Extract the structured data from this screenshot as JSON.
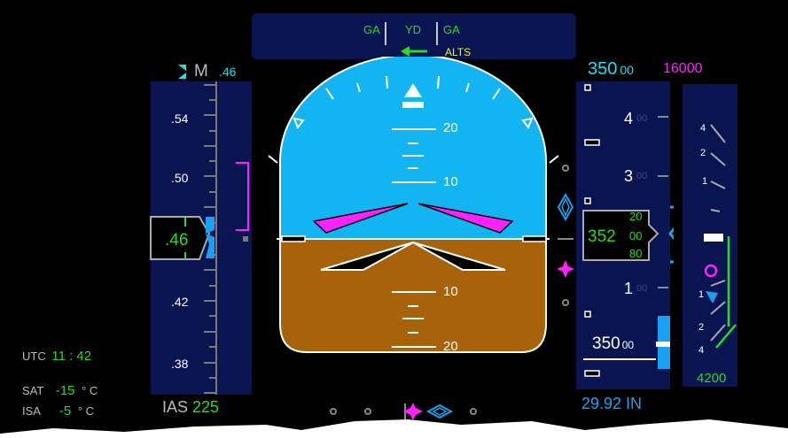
{
  "fma": {
    "left": "GA",
    "center": "YD",
    "right": "GA",
    "armed": "ALTS"
  },
  "speed_tape": {
    "mach_value": ".46",
    "mach_indicator": "M",
    "ticks": [
      ".54",
      ".50",
      ".42",
      ".38"
    ],
    "current": ".46",
    "ias_label": "IAS",
    "ias_value": "225"
  },
  "altitude_tape": {
    "selected_main": "350",
    "selected_sub": "00",
    "baro_min": "16000",
    "ticks_big": [
      "4",
      "3",
      "1"
    ],
    "ticks_small": "00",
    "current_main": "352",
    "current_sub_top": "20",
    "current_sub_mid": "00",
    "current_sub_bottom": "80",
    "bottom_main": "350",
    "bottom_sub": "00",
    "baro_setting": "29.92 IN"
  },
  "vsi": {
    "ticks_up": [
      "4",
      "2",
      "1"
    ],
    "ticks_down": [
      "1",
      "2",
      "4"
    ],
    "value": "4200"
  },
  "pitch": {
    "upper": [
      "20",
      "10"
    ],
    "lower": [
      "10",
      "20"
    ]
  },
  "info": {
    "utc_label": "UTC",
    "utc_value": "11 : 42",
    "sat_label": "SAT",
    "sat_value": "-15",
    "isa_label": "ISA",
    "isa_value": "-5",
    "temp_unit": "° C"
  },
  "colors": {
    "sky": "#12b4f2",
    "ground": "#a7620a",
    "panel": "#0a1450",
    "green": "#22dd22",
    "cyan": "#19e0f0",
    "magenta": "#ff22ff"
  }
}
